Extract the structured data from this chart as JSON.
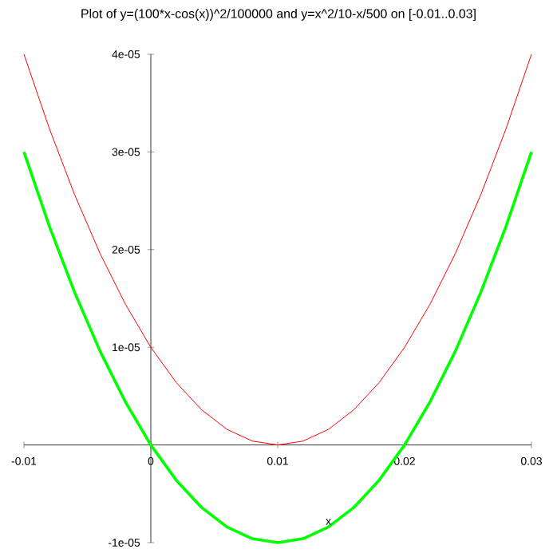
{
  "chart_data": {
    "type": "line",
    "title": "Plot of y=(100*x-cos(x))^2/100000 and y=x^2/10-x/500 on [-0.01..0.03]",
    "xlabel": "x",
    "x": [
      -0.01,
      -0.008,
      -0.006,
      -0.004,
      -0.002,
      0,
      0.002,
      0.004,
      0.006,
      0.008,
      0.01,
      0.012,
      0.014,
      0.016,
      0.018,
      0.02,
      0.022,
      0.024,
      0.026,
      0.028,
      0.03
    ],
    "series": [
      {
        "color": "#ff0000",
        "values": [
          4e-05,
          3.24e-05,
          2.56e-05,
          1.96e-05,
          1.44e-05,
          1e-05,
          6.4e-06,
          3.6e-06,
          1.6e-06,
          4e-07,
          0,
          4e-07,
          1.6e-06,
          3.6e-06,
          6.4e-06,
          1e-05,
          1.44e-05,
          1.96e-05,
          2.56e-05,
          3.24e-05,
          4e-05
        ]
      },
      {
        "color": "#00ff00",
        "values": [
          3e-05,
          2.24e-05,
          1.56e-05,
          9.6e-06,
          4.4e-06,
          0,
          -3.6e-06,
          -6.4e-06,
          -8.4e-06,
          -9.6e-06,
          -1e-05,
          -9.6e-06,
          -8.4e-06,
          -6.4e-06,
          -3.6e-06,
          0,
          4.4e-06,
          9.6e-06,
          1.56e-05,
          2.24e-05,
          3e-05
        ]
      }
    ],
    "xlim": [
      -0.01,
      0.03
    ],
    "ylim": [
      -1e-05,
      4e-05
    ],
    "xticks": [
      -0.01,
      0,
      0.01,
      0.02,
      0.03
    ],
    "yticks": [
      {
        "value": -1e-05,
        "label": "-1e-05"
      },
      {
        "value": 1e-05,
        "label": "1e-05"
      },
      {
        "value": 2e-05,
        "label": "2e-05"
      },
      {
        "value": 3e-05,
        "label": "3e-05"
      },
      {
        "value": 4e-05,
        "label": "4e-05"
      }
    ],
    "grid": false
  }
}
